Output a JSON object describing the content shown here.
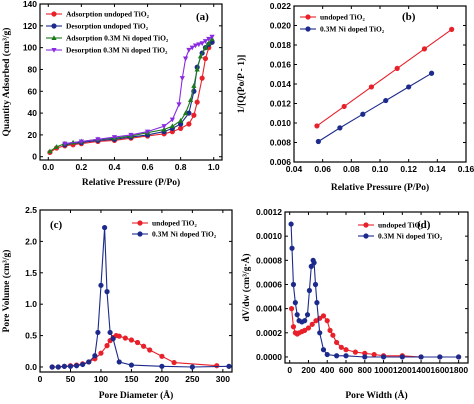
{
  "chart_data": [
    {
      "type": "line",
      "panel": "(a)",
      "xlabel": "Relative Pressure (P/Po)",
      "ylabel": "Quantity Adsorbed (cm³/g)",
      "xlim": [
        -0.05,
        1.05
      ],
      "ylim": [
        -3,
        140
      ],
      "xticks": [
        0.0,
        0.2,
        0.4,
        0.6,
        0.8,
        1.0
      ],
      "xtick_labels": [
        "0.0",
        "0.2",
        "0.4",
        "0.6",
        "0.8",
        "1.0"
      ],
      "yticks": [
        0,
        20,
        40,
        60,
        80,
        100,
        120,
        140
      ],
      "ytick_labels": [
        "0",
        "20",
        "40",
        "60",
        "80",
        "100",
        "120",
        "140"
      ],
      "legend_position": "top-left",
      "series": [
        {
          "name": "Adsorption undoped TiO₂",
          "color": "#e8202a",
          "marker": "circle",
          "x": [
            0.01,
            0.05,
            0.1,
            0.15,
            0.2,
            0.3,
            0.4,
            0.5,
            0.6,
            0.7,
            0.75,
            0.8,
            0.85,
            0.88,
            0.9,
            0.93,
            0.95,
            0.97,
            0.99
          ],
          "y": [
            4,
            8,
            10,
            11,
            12,
            14,
            15,
            17,
            19,
            21,
            23,
            26,
            30,
            38,
            50,
            72,
            90,
            100,
            105
          ]
        },
        {
          "name": "Desorption undoped TiO₂",
          "color": "#1c2a8c",
          "marker": "circle",
          "x": [
            0.99,
            0.97,
            0.95,
            0.93,
            0.9,
            0.88,
            0.85,
            0.8,
            0.75,
            0.7,
            0.6,
            0.5,
            0.4,
            0.3,
            0.2,
            0.1
          ],
          "y": [
            105,
            103,
            100,
            95,
            82,
            60,
            40,
            30,
            26,
            23,
            20,
            18,
            16,
            15,
            13,
            11
          ]
        },
        {
          "name": "Adsorption 0.3M    Ni doped TiO₂",
          "color": "#1a7a1a",
          "marker": "triangle-up",
          "x": [
            0.01,
            0.05,
            0.1,
            0.15,
            0.2,
            0.3,
            0.4,
            0.5,
            0.6,
            0.7,
            0.75,
            0.8,
            0.83,
            0.86,
            0.88,
            0.9,
            0.92,
            0.95,
            0.97,
            0.99
          ],
          "y": [
            5,
            9,
            12,
            13,
            14,
            16,
            17,
            19,
            22,
            25,
            28,
            33,
            40,
            52,
            65,
            80,
            92,
            100,
            104,
            108
          ]
        },
        {
          "name": "Desorption 0.3M    Ni doped TiO₂",
          "color": "#8a2be2",
          "marker": "triangle-down",
          "x": [
            0.99,
            0.97,
            0.95,
            0.93,
            0.91,
            0.89,
            0.87,
            0.85,
            0.83,
            0.81,
            0.79,
            0.75,
            0.7,
            0.6,
            0.5,
            0.4,
            0.3,
            0.2,
            0.1
          ],
          "y": [
            110,
            108,
            106,
            104,
            103,
            102,
            100,
            98,
            90,
            72,
            48,
            34,
            28,
            23,
            20,
            18,
            16,
            14,
            12
          ]
        }
      ]
    },
    {
      "type": "line",
      "panel": "(b)",
      "xlabel": "Relative Pressure (P/Po)",
      "ylabel": "1/[Q(Po/P - 1)]",
      "xlim": [
        0.04,
        0.16
      ],
      "ylim": [
        0.006,
        0.022
      ],
      "xticks": [
        0.04,
        0.06,
        0.08,
        0.1,
        0.12,
        0.14,
        0.16
      ],
      "xtick_labels": [
        "0.04",
        "0.06",
        "0.08",
        "0.10",
        "0.12",
        "0.14",
        "0.16"
      ],
      "yticks": [
        0.006,
        0.008,
        0.01,
        0.012,
        0.014,
        0.016,
        0.018,
        0.02,
        0.022
      ],
      "ytick_labels": [
        "0.006",
        "0.008",
        "0.010",
        "0.012",
        "0.014",
        "0.016",
        "0.018",
        "0.020",
        "0.022"
      ],
      "legend_position": "top-left",
      "series": [
        {
          "name": "undoped TiO₂",
          "color": "#e8202a",
          "marker": "circle",
          "x": [
            0.056,
            0.075,
            0.094,
            0.112,
            0.131,
            0.15
          ],
          "y": [
            0.0097,
            0.0117,
            0.0137,
            0.0156,
            0.0176,
            0.0196
          ]
        },
        {
          "name": "0.3M    Ni doped TiO₂",
          "color": "#1c2a8c",
          "marker": "circle",
          "x": [
            0.057,
            0.072,
            0.088,
            0.104,
            0.12,
            0.136
          ],
          "y": [
            0.0081,
            0.0095,
            0.0109,
            0.0123,
            0.0137,
            0.0151
          ]
        }
      ]
    },
    {
      "type": "line",
      "panel": "(c)",
      "xlabel": "Pore Diameter (Å)",
      "ylabel": "Pore Volume (cm³/g)",
      "xlim": [
        0,
        315
      ],
      "ylim": [
        -0.08,
        2.5
      ],
      "xticks": [
        0,
        50,
        100,
        150,
        200,
        250,
        300
      ],
      "xtick_labels": [
        "0",
        "50",
        "100",
        "150",
        "200",
        "250",
        "300"
      ],
      "yticks": [
        0.0,
        0.5,
        1.0,
        1.5,
        2.0,
        2.5
      ],
      "ytick_labels": [
        "0.0",
        "0.5",
        "1.0",
        "1.5",
        "2.0",
        "2.5"
      ],
      "legend_position": "top-right",
      "series": [
        {
          "name": "undoped TiO₂",
          "color": "#e8202a",
          "marker": "circle",
          "x": [
            20,
            30,
            40,
            50,
            60,
            70,
            80,
            90,
            100,
            110,
            115,
            120,
            125,
            130,
            140,
            150,
            160,
            170,
            180,
            200,
            220,
            290
          ],
          "y": [
            0.0,
            0.0,
            0.01,
            0.02,
            0.03,
            0.05,
            0.08,
            0.13,
            0.22,
            0.34,
            0.42,
            0.47,
            0.5,
            0.49,
            0.46,
            0.43,
            0.39,
            0.33,
            0.27,
            0.17,
            0.07,
            0.02
          ]
        },
        {
          "name": "0.3M    Ni doped TiO₂",
          "color": "#1c2a8c",
          "marker": "circle",
          "x": [
            20,
            30,
            40,
            50,
            60,
            70,
            80,
            90,
            95,
            100,
            106,
            110,
            115,
            120,
            130,
            150,
            200,
            250,
            310
          ],
          "y": [
            0.0,
            0.0,
            0.01,
            0.01,
            0.02,
            0.04,
            0.08,
            0.18,
            0.55,
            1.3,
            2.22,
            1.2,
            0.55,
            0.45,
            0.08,
            0.03,
            0.01,
            0.0,
            0.01
          ]
        }
      ]
    },
    {
      "type": "line",
      "panel": "(d)",
      "xlabel": "Pore Width (Å)",
      "ylabel": "dV/dw (cm³/g·Å)",
      "xlim": [
        -50,
        1900
      ],
      "ylim": [
        -5e-05,
        0.0012
      ],
      "xticks": [
        0,
        200,
        400,
        600,
        800,
        1000,
        1200,
        1400,
        1600,
        1800
      ],
      "xtick_labels": [
        "0",
        "200",
        "400",
        "600",
        "800",
        "1000",
        "1200",
        "1400",
        "1600",
        "1800"
      ],
      "yticks": [
        0.0,
        0.0002,
        0.0004,
        0.0006,
        0.0008,
        0.001,
        0.0012
      ],
      "ytick_labels": [
        "0.0000",
        "0.0002",
        "0.0004",
        "0.0006",
        "0.0008",
        "0.0010",
        "0.0012"
      ],
      "legend_position": "top-right",
      "series": [
        {
          "name": "undoped TiO₂",
          "color": "#e8202a",
          "marker": "circle",
          "x": [
            20,
            40,
            60,
            80,
            100,
            130,
            160,
            200,
            240,
            280,
            320,
            360,
            400,
            430,
            460,
            500,
            550,
            600,
            700,
            800,
            900,
            1000,
            1200,
            1400,
            1600,
            1800
          ],
          "y": [
            0.0004,
            0.00025,
            0.0002,
            0.00019,
            0.0002,
            0.00021,
            0.00022,
            0.00024,
            0.00027,
            0.0003,
            0.00032,
            0.00034,
            0.0003,
            0.00022,
            0.00018,
            0.00012,
            8e-05,
            6e-05,
            4e-05,
            3e-05,
            2e-05,
            1e-05,
            1e-05,
            0.0,
            0.0,
            0.0
          ]
        },
        {
          "name": "0.3M    Ni doped TiO₂",
          "color": "#1c2a8c",
          "marker": "circle",
          "x": [
            15,
            25,
            40,
            60,
            80,
            100,
            130,
            160,
            190,
            210,
            230,
            250,
            260,
            275,
            290,
            320,
            360,
            400,
            500,
            600,
            800,
            1000,
            1200,
            1400,
            1600,
            1800
          ],
          "y": [
            0.0011,
            0.0009,
            0.0006,
            0.00045,
            0.00035,
            0.0003,
            0.00029,
            0.0003,
            0.00035,
            0.00055,
            0.00075,
            0.0008,
            0.00078,
            0.0006,
            0.00045,
            0.0002,
            6e-05,
            2e-05,
            1e-05,
            1e-05,
            0.0,
            0.0,
            0.0,
            0.0,
            0.0,
            0.0
          ]
        }
      ]
    }
  ]
}
